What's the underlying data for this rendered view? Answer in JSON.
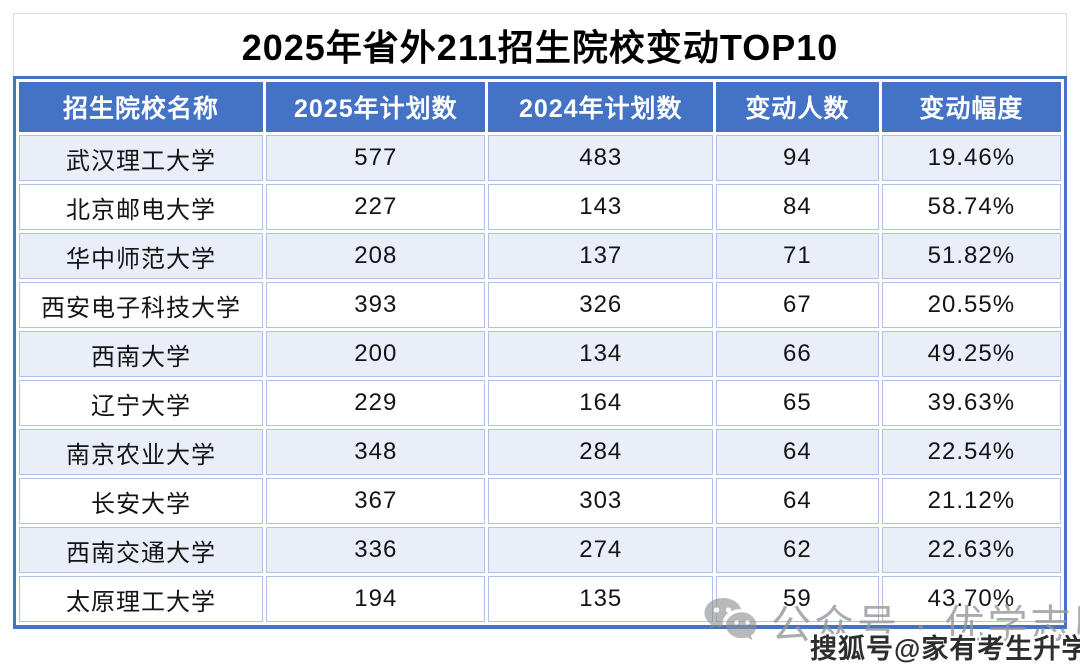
{
  "title": "2025年省外211招生院校变动TOP10",
  "table": {
    "headers": [
      "招生院校名称",
      "2025年计划数",
      "2024年计划数",
      "变动人数",
      "变动幅度"
    ],
    "rows": [
      [
        "武汉理工大学",
        "577",
        "483",
        "94",
        "19.46%"
      ],
      [
        "北京邮电大学",
        "227",
        "143",
        "84",
        "58.74%"
      ],
      [
        "华中师范大学",
        "208",
        "137",
        "71",
        "51.82%"
      ],
      [
        "西安电子科技大学",
        "393",
        "326",
        "67",
        "20.55%"
      ],
      [
        "西南大学",
        "200",
        "134",
        "66",
        "49.25%"
      ],
      [
        "辽宁大学",
        "229",
        "164",
        "65",
        "39.63%"
      ],
      [
        "南京农业大学",
        "348",
        "284",
        "64",
        "22.54%"
      ],
      [
        "长安大学",
        "367",
        "303",
        "64",
        "21.12%"
      ],
      [
        "西南交通大学",
        "336",
        "274",
        "62",
        "22.63%"
      ],
      [
        "太原理工大学",
        "194",
        "135",
        "59",
        "43.70%"
      ]
    ]
  },
  "watermarks": {
    "wechat_icon": "wechat-icon",
    "wechat_text": "公众号 · 优学志愿宝",
    "sohu_text": "搜狐号@家有考生升学帮"
  },
  "colors": {
    "header_bg": "#4472C4",
    "outer_border": "#4472C4",
    "cell_border": "#AEC1E6",
    "row_alt_bg": "#E9EEF8",
    "row_bg": "#FFFFFF",
    "title_border": "#DCDCDC",
    "watermark_gray": "#969696"
  },
  "chart_data": {
    "type": "table",
    "title": "2025年省外211招生院校变动TOP10",
    "columns": [
      "招生院校名称",
      "2025年计划数",
      "2024年计划数",
      "变动人数",
      "变动幅度"
    ],
    "rows": [
      {
        "school": "武汉理工大学",
        "plan_2025": 577,
        "plan_2024": 483,
        "change": 94,
        "change_pct": "19.46%"
      },
      {
        "school": "北京邮电大学",
        "plan_2025": 227,
        "plan_2024": 143,
        "change": 84,
        "change_pct": "58.74%"
      },
      {
        "school": "华中师范大学",
        "plan_2025": 208,
        "plan_2024": 137,
        "change": 71,
        "change_pct": "51.82%"
      },
      {
        "school": "西安电子科技大学",
        "plan_2025": 393,
        "plan_2024": 326,
        "change": 67,
        "change_pct": "20.55%"
      },
      {
        "school": "西南大学",
        "plan_2025": 200,
        "plan_2024": 134,
        "change": 66,
        "change_pct": "49.25%"
      },
      {
        "school": "辽宁大学",
        "plan_2025": 229,
        "plan_2024": 164,
        "change": 65,
        "change_pct": "39.63%"
      },
      {
        "school": "南京农业大学",
        "plan_2025": 348,
        "plan_2024": 284,
        "change": 64,
        "change_pct": "22.54%"
      },
      {
        "school": "长安大学",
        "plan_2025": 367,
        "plan_2024": 303,
        "change": 64,
        "change_pct": "21.12%"
      },
      {
        "school": "西南交通大学",
        "plan_2025": 336,
        "plan_2024": 274,
        "change": 62,
        "change_pct": "22.63%"
      },
      {
        "school": "太原理工大学",
        "plan_2025": 194,
        "plan_2024": 135,
        "change": 59,
        "change_pct": "43.70%"
      }
    ]
  }
}
